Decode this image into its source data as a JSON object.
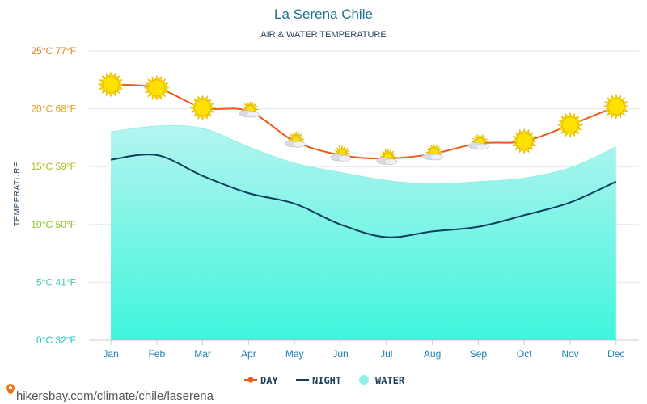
{
  "chart_data": {
    "type": "line",
    "title": "La Serena Chile",
    "subtitle": "AIR & WATER TEMPERATURE",
    "ylabel": "TEMPERATURE",
    "categories": [
      "Jan",
      "Feb",
      "Mar",
      "Apr",
      "May",
      "Jun",
      "Jul",
      "Aug",
      "Sep",
      "Oct",
      "Nov",
      "Dec"
    ],
    "ylim": [
      0,
      25
    ],
    "yticks": [
      {
        "value": 0,
        "label": "0°C 32°F",
        "color": "#1fc7c0"
      },
      {
        "value": 5,
        "label": "5°C 41°F",
        "color": "#3cc7b0"
      },
      {
        "value": 10,
        "label": "10°C 50°F",
        "color": "#8fc21a"
      },
      {
        "value": 15,
        "label": "15°C 59°F",
        "color": "#b3bb1a"
      },
      {
        "value": 20,
        "label": "20°C 68°F",
        "color": "#e0a21a"
      },
      {
        "value": 25,
        "label": "25°C 77°F",
        "color": "#ea7a1a"
      }
    ],
    "grid": true,
    "legend_position": "bottom",
    "series": [
      {
        "name": "DAY",
        "kind": "line-markers",
        "color": "#ea5a1a",
        "values": [
          22.1,
          21.8,
          20.1,
          19.8,
          17.2,
          16.0,
          15.7,
          16.1,
          17.0,
          17.2,
          18.6,
          20.2
        ],
        "icons": [
          "sun",
          "sun",
          "sun",
          "partly-cloudy",
          "partly-cloudy",
          "partly-cloudy",
          "partly-cloudy",
          "partly-cloudy",
          "partly-cloudy",
          "sun",
          "sun",
          "sun"
        ]
      },
      {
        "name": "NIGHT",
        "kind": "line",
        "color": "#0f3d5c",
        "values": [
          15.6,
          16.0,
          14.2,
          12.7,
          11.8,
          10.0,
          8.9,
          9.4,
          9.8,
          10.8,
          11.9,
          13.7
        ]
      },
      {
        "name": "WATER",
        "kind": "area",
        "color": "#3ff5dc",
        "values": [
          18.0,
          18.5,
          18.3,
          16.7,
          15.3,
          14.5,
          13.8,
          13.5,
          13.7,
          14.0,
          14.9,
          16.7
        ]
      }
    ]
  },
  "source_text": "hikersbay.com/climate/chile/laserena",
  "colors": {
    "grid": "#e6e6e6",
    "axis": "#cccccc",
    "water_top": "#b4f4f0",
    "water_bottom": "#3ff5dc",
    "sun": "#ffe000",
    "cloud": "#d8dce4"
  }
}
